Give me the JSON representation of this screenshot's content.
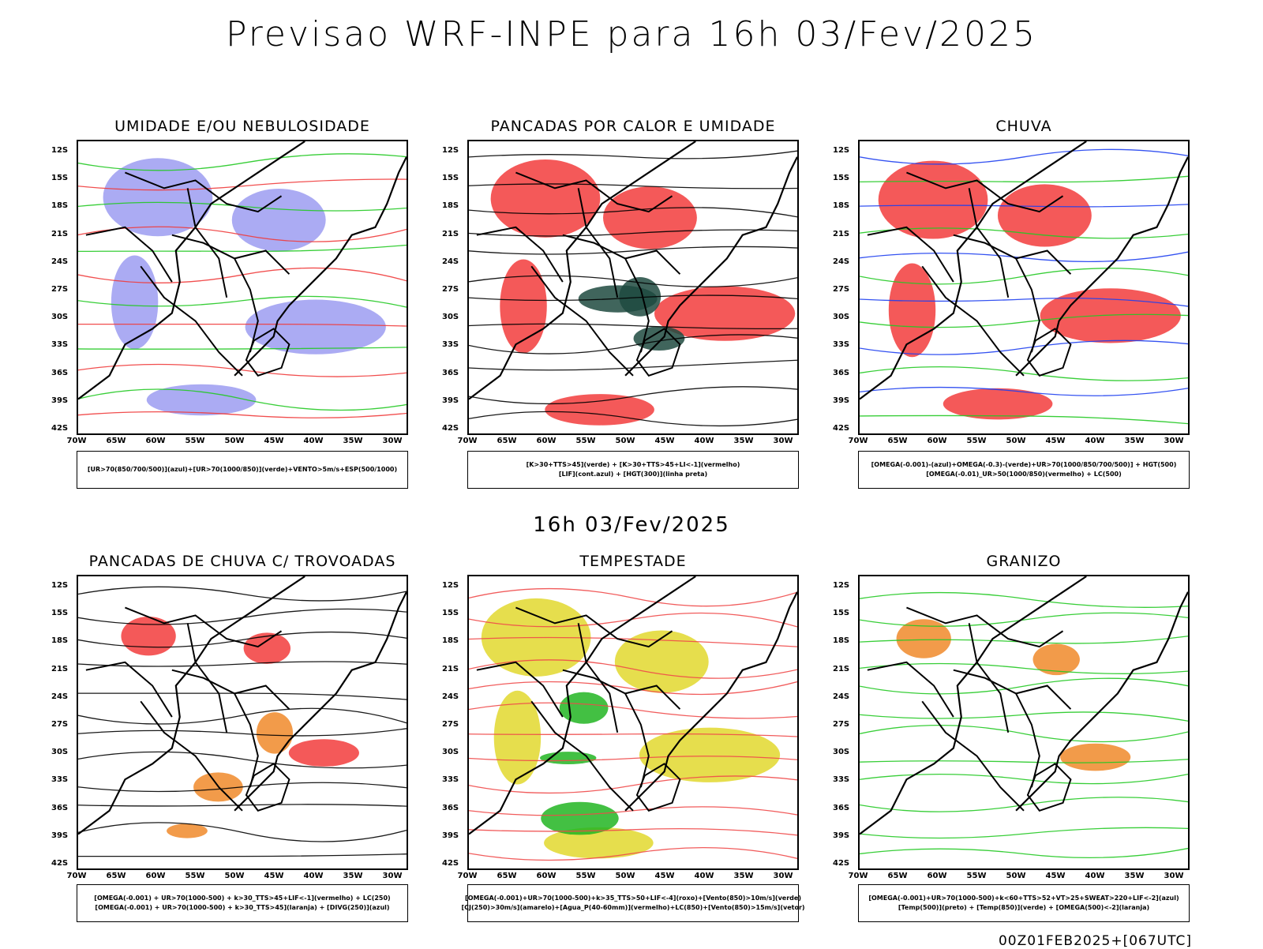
{
  "title": "Previsao WRF-INPE  para 16h 03/Fev/2025",
  "mid_title": "16h 03/Fev/2025",
  "footer": "00Z01FEB2025+[067UTC]",
  "lat_labels": [
    "12S",
    "15S",
    "18S",
    "21S",
    "24S",
    "27S",
    "30S",
    "33S",
    "36S",
    "39S",
    "42S"
  ],
  "lon_labels": [
    "70W",
    "65W",
    "60W",
    "55W",
    "50W",
    "45W",
    "40W",
    "35W",
    "30W"
  ],
  "panels": [
    {
      "title": "UMIDADE E/OU NEBULOSIDADE",
      "legend": [
        "[UR>70(850/700/500)](azul)+[UR>70(1000/850)](verde)+VENTO>5m/s+ESP(500/1000)"
      ],
      "colors": {
        "fill": "#8f8fef",
        "line1": "#22c922",
        "line2": "#ef3b3b"
      }
    },
    {
      "title": "PANCADAS POR CALOR E UMIDADE",
      "legend": [
        "[K>30+TTS>45](verde) + [K>30+TTS>45+LI<-1](vermelho)",
        "[LIF](cont.azul) + [HGT(300)](linha preta)"
      ],
      "colors": {
        "fill": "#f23c3c",
        "fill2": "#1f4a3f",
        "line1": "#1e3fef"
      }
    },
    {
      "title": "CHUVA",
      "legend": [
        "[OMEGA(-0.001)-(azul)+OMEGA(-0.3)-(verde)+UR>70(1000/850/700/500)] + HGT(500)",
        "[OMEGA(-0.01)_UR>50(1000/850)(vermelho) + LC(500)"
      ],
      "colors": {
        "fill": "#f23c3c",
        "line1": "#1e3fef",
        "line2": "#22c922"
      }
    },
    {
      "title": "PANCADAS DE CHUVA C/ TROVOADAS",
      "legend": [
        "[OMEGA(-0.001) + UR>70(1000-500) + k>30_TTS>45+LIF<-1](vermelho) + LC(250)",
        "[OMEGA(-0.001) + UR>70(1000-500) + k>30_TTS>45](laranja) + [DIVG(250)](azul)"
      ],
      "colors": {
        "fill": "#f23c3c",
        "fill2": "#f08a2a",
        "line1": "#1e3fef"
      }
    },
    {
      "title": "TEMPESTADE",
      "legend": [
        "[OMEGA(-0.001)+UR>70(1000-500)+k>35_TTS>50+LIF<-4](roxo)+[Vento(850)>10m/s](verde)",
        "[CJ(250)>30m/s](amarelo)+[Agua_P(40-60mm)](vermelho)+LC(850)+[Vento(850)>15m/s](vetor)"
      ],
      "colors": {
        "fill": "#e2d82e",
        "fill2": "#22b522",
        "line1": "#ef4a4a"
      }
    },
    {
      "title": "GRANIZO",
      "legend": [
        "[OMEGA(-0.001)+UR>70(1000-500)+k<60+TTS>52+VT>25+SWEAT>220+LIF<-2](azul)",
        "[Temp(500)](preto) + [Temp(850)](verde) + [OMEGA(500)<-2](laranja)"
      ],
      "colors": {
        "fill": "#f08a2a",
        "line1": "#22c922"
      }
    }
  ]
}
